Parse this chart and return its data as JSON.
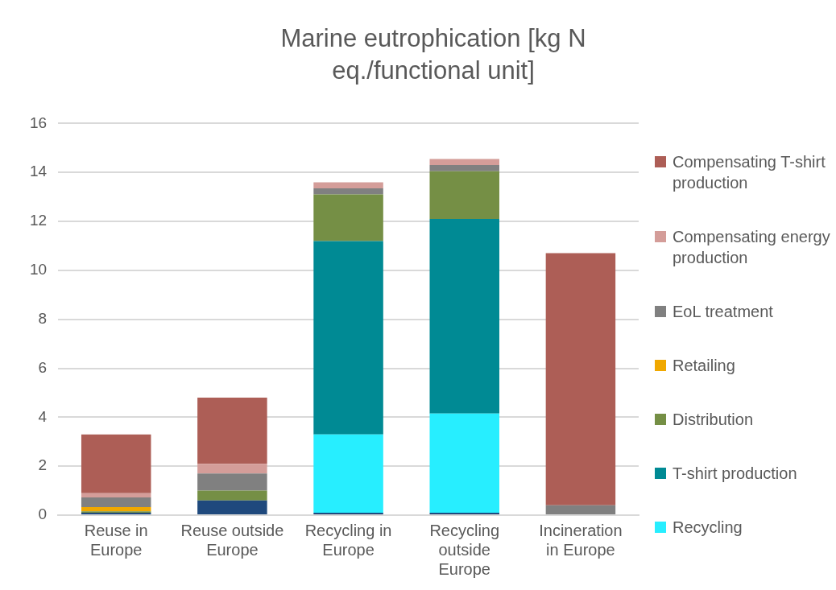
{
  "chart_data": {
    "type": "bar",
    "title": "Marine eutrophication [kg N eq./functional unit]",
    "categories": [
      "Reuse in Europe",
      "Reuse outside Europe",
      "Recycling in Europe",
      "Recycling outside Europe",
      "Incineration in Europe"
    ],
    "stacked": true,
    "ylim": [
      0,
      16
    ],
    "yticks": [
      0,
      2,
      4,
      6,
      8,
      10,
      12,
      14,
      16
    ],
    "grid": "y",
    "legend": "right",
    "series": [
      {
        "color": "#1f497d",
        "values": [
          0.1,
          0.6,
          0.1,
          0.1,
          0
        ]
      },
      {
        "name": "Recycling",
        "color": "#27eeff",
        "values": [
          0,
          0,
          3.2,
          4.05,
          0
        ]
      },
      {
        "name": "T-shirt production",
        "color": "#008a94",
        "values": [
          0,
          0,
          7.9,
          7.95,
          0
        ]
      },
      {
        "name": "Distribution",
        "color": "#758f45",
        "values": [
          0.06,
          0.4,
          1.9,
          1.95,
          0
        ]
      },
      {
        "name": "Retailing",
        "color": "#f0a800",
        "values": [
          0.17,
          0,
          0,
          0,
          0
        ]
      },
      {
        "name": "EoL treatment",
        "color": "#808080",
        "values": [
          0.39,
          0.7,
          0.25,
          0.25,
          0.4
        ]
      },
      {
        "name": "Compensating energy production",
        "color": "#d49d99",
        "values": [
          0.18,
          0.4,
          0.25,
          0.25,
          0
        ]
      },
      {
        "name": "Compensating T-shirt production",
        "color": "#ad5e56",
        "values": [
          2.4,
          2.7,
          0,
          0,
          10.3
        ]
      }
    ]
  }
}
